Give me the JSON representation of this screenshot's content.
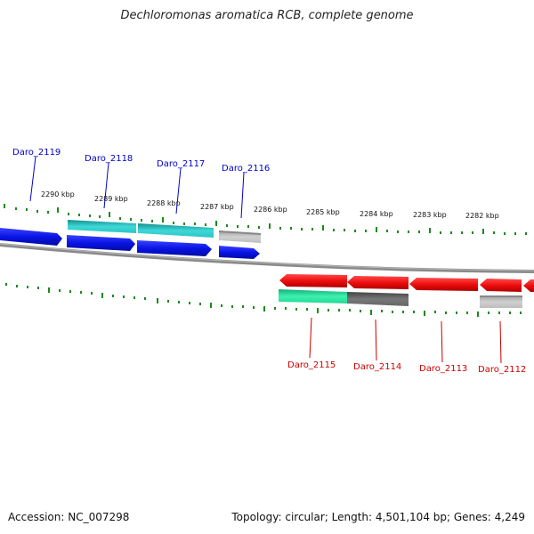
{
  "title": "Dechloromonas aromatica RCB, complete genome",
  "footer": {
    "accession": "Accession: NC_007298",
    "stats": "Topology: circular; Length: 4,501,104 bp; Genes: 4,249"
  },
  "scale_labels": [
    "2290 kbp",
    "2289 kbp",
    "2288 kbp",
    "2287 kbp",
    "2286 kbp",
    "2285 kbp",
    "2284 kbp",
    "2283 kbp",
    "2282 kbp"
  ],
  "genes_top": [
    {
      "name": "Daro_2119",
      "color": "#0000cc"
    },
    {
      "name": "Daro_2118",
      "color": "#0000cc"
    },
    {
      "name": "Daro_2117",
      "color": "#0000cc"
    },
    {
      "name": "Daro_2116",
      "color": "#0000cc"
    }
  ],
  "genes_bottom": [
    {
      "name": "Daro_2115",
      "color": "#cc0000"
    },
    {
      "name": "Daro_2114",
      "color": "#cc0000"
    },
    {
      "name": "Daro_2113",
      "color": "#cc0000"
    },
    {
      "name": "Daro_2112",
      "color": "#cc0000"
    }
  ],
  "colors": {
    "forward_gene": "#0a14e6",
    "reverse_gene": "#ee0e0e",
    "cyan_track": "#19c8c8",
    "green_track": "#1ee0a0",
    "gray_track": "#707070",
    "light_gray_track": "#c0c0c0",
    "backbone": "#8a8a8a",
    "tick": "#1a8a1a"
  }
}
